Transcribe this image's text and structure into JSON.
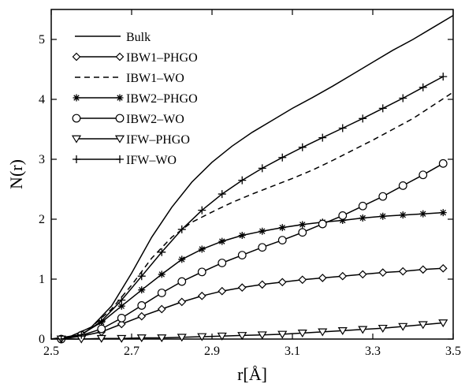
{
  "chart_data": {
    "type": "line",
    "title": "",
    "xlabel": "r[Å]",
    "ylabel": "N(r)",
    "xlim": [
      2.5,
      3.5
    ],
    "ylim": [
      0,
      5.5
    ],
    "xticks": [
      "2.5",
      "2.7",
      "2.9",
      "3.1",
      "3.3",
      "3.5"
    ],
    "yticks": [
      "0",
      "1",
      "2",
      "3",
      "4",
      "5"
    ],
    "grid": false,
    "legend_position": "top-left",
    "series": [
      {
        "name": "Bulk",
        "style": "solid",
        "marker": "none",
        "x": [
          2.5,
          2.55,
          2.6,
          2.65,
          2.7,
          2.75,
          2.8,
          2.85,
          2.9,
          2.95,
          3.0,
          3.05,
          3.1,
          3.15,
          3.2,
          3.25,
          3.3,
          3.35,
          3.4,
          3.45,
          3.5
        ],
        "y": [
          0.0,
          0.05,
          0.2,
          0.55,
          1.1,
          1.7,
          2.2,
          2.62,
          2.95,
          3.22,
          3.45,
          3.65,
          3.85,
          4.03,
          4.22,
          4.42,
          4.62,
          4.82,
          5.0,
          5.2,
          5.4
        ]
      },
      {
        "name": "IBW1–PHGO",
        "style": "solid",
        "marker": "diamond",
        "x": [
          2.525,
          2.575,
          2.625,
          2.675,
          2.725,
          2.775,
          2.825,
          2.875,
          2.925,
          2.975,
          3.025,
          3.075,
          3.125,
          3.175,
          3.225,
          3.275,
          3.325,
          3.375,
          3.425,
          3.475
        ],
        "y": [
          0.0,
          0.05,
          0.12,
          0.25,
          0.38,
          0.5,
          0.62,
          0.72,
          0.8,
          0.86,
          0.91,
          0.95,
          0.99,
          1.02,
          1.05,
          1.08,
          1.11,
          1.13,
          1.16,
          1.18
        ]
      },
      {
        "name": "IBW1–WO",
        "style": "dashed",
        "marker": "none",
        "x": [
          2.5,
          2.55,
          2.6,
          2.65,
          2.7,
          2.75,
          2.8,
          2.85,
          2.9,
          2.95,
          3.0,
          3.05,
          3.1,
          3.15,
          3.2,
          3.25,
          3.3,
          3.35,
          3.4,
          3.45,
          3.5
        ],
        "y": [
          0.0,
          0.05,
          0.2,
          0.5,
          0.9,
          1.35,
          1.7,
          1.95,
          2.12,
          2.28,
          2.42,
          2.55,
          2.68,
          2.82,
          2.98,
          3.15,
          3.32,
          3.5,
          3.68,
          3.9,
          4.12
        ]
      },
      {
        "name": "IBW2–PHGO",
        "style": "solid",
        "marker": "asterisk",
        "x": [
          2.525,
          2.575,
          2.625,
          2.675,
          2.725,
          2.775,
          2.825,
          2.875,
          2.925,
          2.975,
          3.025,
          3.075,
          3.125,
          3.175,
          3.225,
          3.275,
          3.325,
          3.375,
          3.425,
          3.475
        ],
        "y": [
          0.0,
          0.08,
          0.28,
          0.55,
          0.82,
          1.08,
          1.33,
          1.5,
          1.63,
          1.73,
          1.8,
          1.86,
          1.91,
          1.95,
          1.98,
          2.02,
          2.05,
          2.07,
          2.09,
          2.11
        ]
      },
      {
        "name": "IBW2–WO",
        "style": "solid",
        "marker": "circle",
        "x": [
          2.525,
          2.575,
          2.625,
          2.675,
          2.725,
          2.775,
          2.825,
          2.875,
          2.925,
          2.975,
          3.025,
          3.075,
          3.125,
          3.175,
          3.225,
          3.275,
          3.325,
          3.375,
          3.425,
          3.475
        ],
        "y": [
          0.0,
          0.06,
          0.17,
          0.35,
          0.56,
          0.77,
          0.96,
          1.12,
          1.27,
          1.4,
          1.53,
          1.65,
          1.78,
          1.92,
          2.06,
          2.22,
          2.38,
          2.56,
          2.74,
          2.93
        ]
      },
      {
        "name": "IFW–PHGO",
        "style": "solid",
        "marker": "triangle-down",
        "x": [
          2.525,
          2.575,
          2.625,
          2.675,
          2.725,
          2.775,
          2.825,
          2.875,
          2.925,
          2.975,
          3.025,
          3.075,
          3.125,
          3.175,
          3.225,
          3.275,
          3.325,
          3.375,
          3.425,
          3.475
        ],
        "y": [
          0.0,
          0.0,
          0.01,
          0.01,
          0.02,
          0.02,
          0.03,
          0.04,
          0.05,
          0.06,
          0.07,
          0.08,
          0.1,
          0.12,
          0.14,
          0.16,
          0.18,
          0.21,
          0.24,
          0.27
        ]
      },
      {
        "name": "IFW–WO",
        "style": "solid",
        "marker": "plus",
        "x": [
          2.525,
          2.575,
          2.625,
          2.675,
          2.725,
          2.775,
          2.825,
          2.875,
          2.925,
          2.975,
          3.025,
          3.075,
          3.125,
          3.175,
          3.225,
          3.275,
          3.325,
          3.375,
          3.425,
          3.475
        ],
        "y": [
          0.0,
          0.07,
          0.3,
          0.65,
          1.05,
          1.45,
          1.83,
          2.15,
          2.42,
          2.65,
          2.85,
          3.03,
          3.2,
          3.36,
          3.52,
          3.68,
          3.85,
          4.02,
          4.2,
          4.38
        ]
      }
    ]
  }
}
